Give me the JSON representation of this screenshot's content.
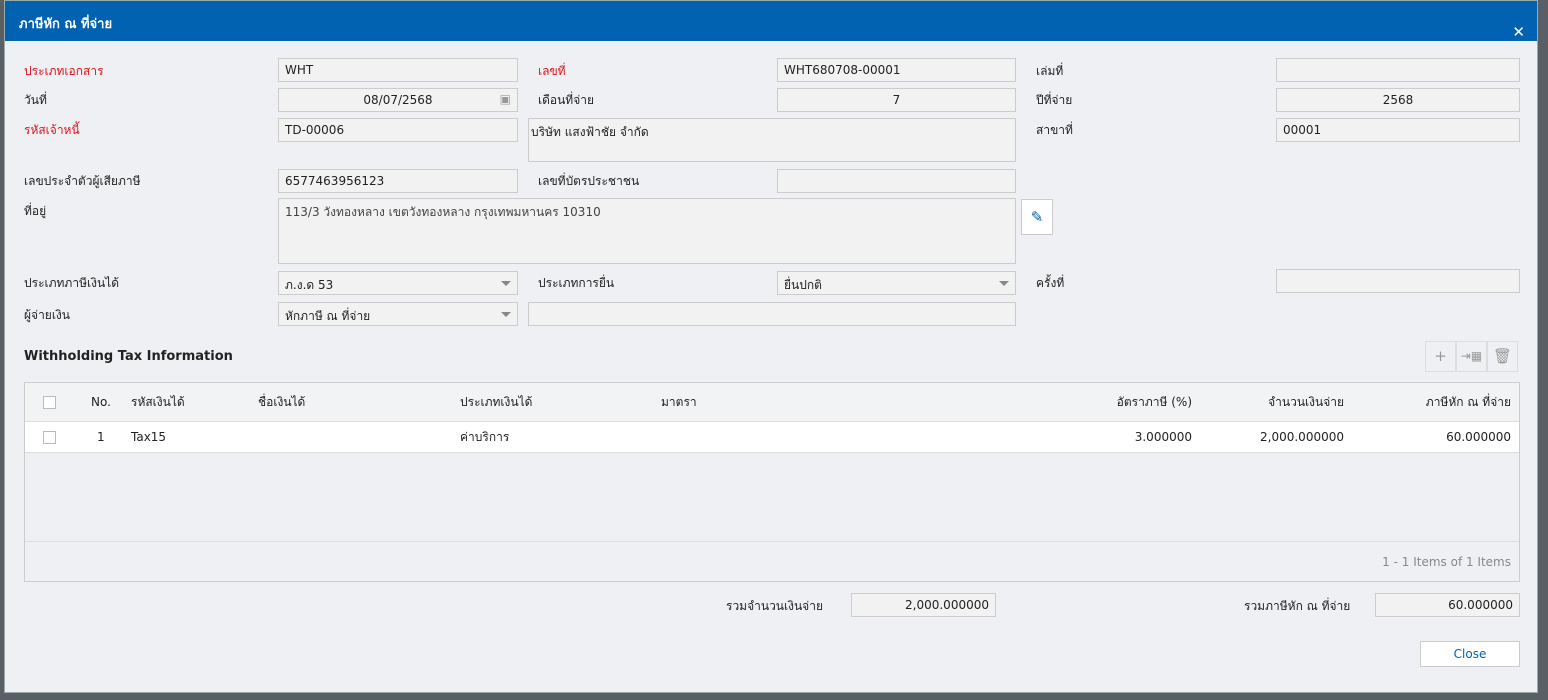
{
  "dialog": {
    "title": "ภาษีหัก ณ ที่จ่าย",
    "close_icon": "close-icon"
  },
  "form": {
    "doc_type_label": "ประเภทเอกสาร",
    "doc_type": "WHT",
    "doc_no_label": "เลขที่",
    "doc_no": "WHT680708-00001",
    "book_no_label": "เล่มที่",
    "book_no": "",
    "date_label": "วันที่",
    "date": "08/07/2568",
    "pay_month_label": "เดือนที่จ่าย",
    "pay_month": "7",
    "pay_year_label": "ปีที่จ่าย",
    "pay_year": "2568",
    "creditor_code_label": "รหัสเจ้าหนี้",
    "creditor_code": "TD-00006",
    "creditor_name": "บริษัท แสงฟ้าชัย จำกัด",
    "branch_label": "สาขาที่",
    "branch": "00001",
    "tax_id_label": "เลขประจำตัวผู้เสียภาษี",
    "tax_id": "6577463956123",
    "id_card_label": "เลขที่บัตรประชาชน",
    "id_card": "",
    "address_label": "ที่อยู่",
    "address": "113/3  วังทองหลาง  เขตวังทองหลาง  กรุงเทพมหานคร 10310",
    "income_tax_type_label": "ประเภทภาษีเงินได้",
    "income_tax_type": "ภ.ง.ด 53",
    "filing_type_label": "ประเภทการยื่น",
    "filing_type": "ยื่นปกติ",
    "times_label": "ครั้งที่",
    "times": "",
    "payer_label": "ผู้จ่ายเงิน",
    "payer": "หักภาษี ณ ที่จ่าย",
    "payer_extra": ""
  },
  "section": {
    "title": "Withholding Tax Information"
  },
  "grid": {
    "columns": [
      "No.",
      "รหัสเงินได้",
      "ชื่อเงินได้",
      "ประเภทเงินได้",
      "มาตรา",
      "อัตราภาษี (%)",
      "จำนวนเงินจ่าย",
      "ภาษีหัก ณ ที่จ่าย"
    ],
    "rows": [
      {
        "no": "1",
        "code": "Tax15",
        "name": "",
        "type": "ค่าบริการ",
        "section": "",
        "rate": "3.000000",
        "amount": "2,000.000000",
        "tax": "60.000000"
      }
    ],
    "pager": "1 - 1 Items of 1 Items"
  },
  "totals": {
    "amount_label": "รวมจำนวนเงินจ่าย",
    "amount": "2,000.000000",
    "tax_label": "รวมภาษีหัก ณ ที่จ่าย",
    "tax": "60.000000"
  },
  "buttons": {
    "close": "Close"
  }
}
